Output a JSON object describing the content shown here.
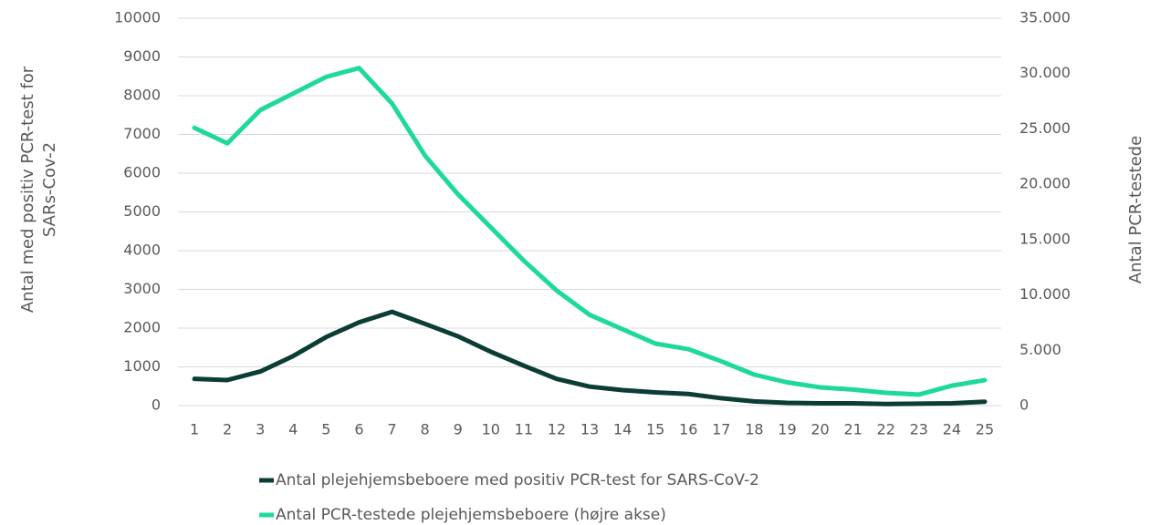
{
  "chart_data": {
    "type": "line",
    "categories": [
      "1",
      "2",
      "3",
      "4",
      "5",
      "6",
      "7",
      "8",
      "9",
      "10",
      "11",
      "12",
      "13",
      "14",
      "15",
      "16",
      "17",
      "18",
      "19",
      "20",
      "21",
      "22",
      "23",
      "24",
      "25"
    ],
    "ylabel": "Antal med positiv PCR-test for SARs-Cov-2",
    "y2label": "Antal PCR-testede",
    "ylim": [
      0,
      10000
    ],
    "yticks": [
      0,
      1000,
      2000,
      3000,
      4000,
      5000,
      6000,
      7000,
      8000,
      9000,
      10000
    ],
    "y2lim": [
      0,
      35000
    ],
    "y2ticks": [
      0,
      {
        "value": 5000,
        "label": "5.000"
      },
      {
        "value": 10000,
        "label": "10.000"
      },
      {
        "value": 15000,
        "label": "15.000"
      },
      {
        "value": 20000,
        "label": "20.000"
      },
      {
        "value": 25000,
        "label": "25.000"
      },
      {
        "value": 30000,
        "label": "30.000"
      },
      {
        "value": 35000,
        "label": "35.000"
      }
    ],
    "grid": true,
    "legend": "bottom",
    "series": [
      {
        "name": "Antal plejehjemsbeboere med positiv PCR-test for SARS-CoV-2",
        "color": "#0b3d34",
        "values": [
          690,
          660,
          880,
          1280,
          1770,
          2150,
          2420,
          2110,
          1790,
          1390,
          1030,
          690,
          490,
          400,
          340,
          300,
          190,
          110,
          70,
          60,
          60,
          40,
          50,
          60,
          100
        ]
      },
      {
        "name": "Antal PCR-testede plejehjemsbeboere (højre akse)",
        "color": "#1ed99b",
        "axis": "y2",
        "values": [
          25100,
          23700,
          26700,
          28200,
          29700,
          30500,
          27300,
          22600,
          19100,
          16100,
          13100,
          10400,
          8200,
          6900,
          5600,
          5100,
          4000,
          2800,
          2100,
          1650,
          1450,
          1150,
          1000,
          1800,
          2300
        ]
      }
    ]
  }
}
